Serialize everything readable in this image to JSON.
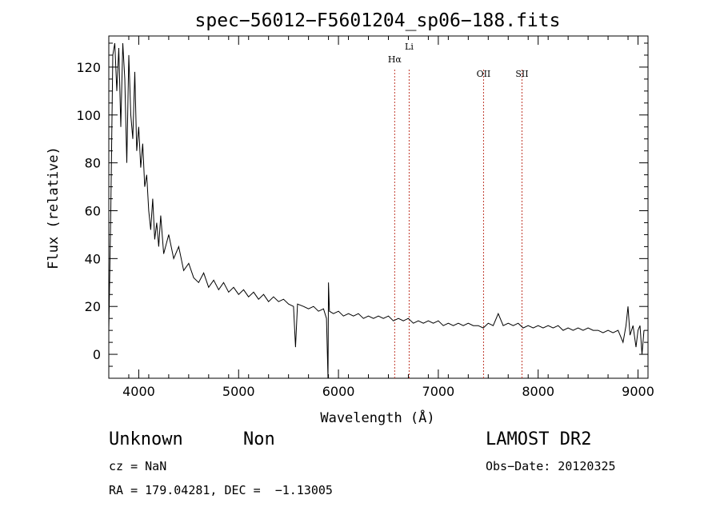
{
  "chart_data": {
    "type": "line",
    "title": "spec−56012−F5601204_sp06−188.fits",
    "xlabel": "Wavelength (Å)",
    "ylabel": "Flux (relative)",
    "xlim": [
      3700,
      9100
    ],
    "ylim": [
      -10,
      133
    ],
    "x_ticks": [
      4000,
      5000,
      6000,
      7000,
      8000,
      9000
    ],
    "y_ticks": [
      0,
      20,
      40,
      60,
      80,
      100,
      120
    ],
    "series": [
      {
        "color": "#000000",
        "points": [
          [
            3700,
            10
          ],
          [
            3720,
            60
          ],
          [
            3740,
            125
          ],
          [
            3760,
            130
          ],
          [
            3780,
            110
          ],
          [
            3800,
            128
          ],
          [
            3820,
            95
          ],
          [
            3840,
            130
          ],
          [
            3860,
            115
          ],
          [
            3880,
            80
          ],
          [
            3900,
            125
          ],
          [
            3920,
            100
          ],
          [
            3940,
            90
          ],
          [
            3960,
            118
          ],
          [
            3980,
            85
          ],
          [
            4000,
            95
          ],
          [
            4020,
            78
          ],
          [
            4040,
            88
          ],
          [
            4060,
            70
          ],
          [
            4080,
            75
          ],
          [
            4100,
            60
          ],
          [
            4120,
            52
          ],
          [
            4140,
            65
          ],
          [
            4160,
            48
          ],
          [
            4180,
            55
          ],
          [
            4200,
            45
          ],
          [
            4220,
            58
          ],
          [
            4250,
            42
          ],
          [
            4300,
            50
          ],
          [
            4350,
            40
          ],
          [
            4400,
            45
          ],
          [
            4450,
            35
          ],
          [
            4500,
            38
          ],
          [
            4550,
            32
          ],
          [
            4600,
            30
          ],
          [
            4650,
            34
          ],
          [
            4700,
            28
          ],
          [
            4750,
            31
          ],
          [
            4800,
            27
          ],
          [
            4850,
            30
          ],
          [
            4900,
            26
          ],
          [
            4950,
            28
          ],
          [
            5000,
            25
          ],
          [
            5050,
            27
          ],
          [
            5100,
            24
          ],
          [
            5150,
            26
          ],
          [
            5200,
            23
          ],
          [
            5250,
            25
          ],
          [
            5300,
            22
          ],
          [
            5350,
            24
          ],
          [
            5400,
            22
          ],
          [
            5450,
            23
          ],
          [
            5500,
            21
          ],
          [
            5550,
            20
          ],
          [
            5570,
            3
          ],
          [
            5590,
            21
          ],
          [
            5650,
            20
          ],
          [
            5700,
            19
          ],
          [
            5750,
            20
          ],
          [
            5800,
            18
          ],
          [
            5850,
            19
          ],
          [
            5880,
            15
          ],
          [
            5895,
            -10
          ],
          [
            5900,
            30
          ],
          [
            5910,
            18
          ],
          [
            5950,
            17
          ],
          [
            6000,
            18
          ],
          [
            6050,
            16
          ],
          [
            6100,
            17
          ],
          [
            6150,
            16
          ],
          [
            6200,
            17
          ],
          [
            6250,
            15
          ],
          [
            6300,
            16
          ],
          [
            6350,
            15
          ],
          [
            6400,
            16
          ],
          [
            6450,
            15
          ],
          [
            6500,
            16
          ],
          [
            6550,
            14
          ],
          [
            6600,
            15
          ],
          [
            6650,
            14
          ],
          [
            6700,
            15
          ],
          [
            6750,
            13
          ],
          [
            6800,
            14
          ],
          [
            6850,
            13
          ],
          [
            6900,
            14
          ],
          [
            6950,
            13
          ],
          [
            7000,
            14
          ],
          [
            7050,
            12
          ],
          [
            7100,
            13
          ],
          [
            7150,
            12
          ],
          [
            7200,
            13
          ],
          [
            7250,
            12
          ],
          [
            7300,
            13
          ],
          [
            7350,
            12
          ],
          [
            7400,
            12
          ],
          [
            7450,
            11
          ],
          [
            7500,
            13
          ],
          [
            7550,
            12
          ],
          [
            7600,
            17
          ],
          [
            7650,
            12
          ],
          [
            7700,
            13
          ],
          [
            7750,
            12
          ],
          [
            7800,
            13
          ],
          [
            7850,
            11
          ],
          [
            7900,
            12
          ],
          [
            7950,
            11
          ],
          [
            8000,
            12
          ],
          [
            8050,
            11
          ],
          [
            8100,
            12
          ],
          [
            8150,
            11
          ],
          [
            8200,
            12
          ],
          [
            8250,
            10
          ],
          [
            8300,
            11
          ],
          [
            8350,
            10
          ],
          [
            8400,
            11
          ],
          [
            8450,
            10
          ],
          [
            8500,
            11
          ],
          [
            8550,
            10
          ],
          [
            8600,
            10
          ],
          [
            8650,
            9
          ],
          [
            8700,
            10
          ],
          [
            8750,
            9
          ],
          [
            8800,
            10
          ],
          [
            8850,
            5
          ],
          [
            8880,
            12
          ],
          [
            8900,
            20
          ],
          [
            8920,
            8
          ],
          [
            8950,
            12
          ],
          [
            8980,
            3
          ],
          [
            9000,
            10
          ],
          [
            9020,
            12
          ],
          [
            9040,
            0
          ],
          [
            9060,
            10
          ]
        ]
      }
    ],
    "reference_lines": [
      {
        "label": "Hα",
        "x": 6563
      },
      {
        "label": "Li",
        "x": 6708
      },
      {
        "label": "OII",
        "x": 7453
      },
      {
        "label": "SII",
        "x": 7838
      }
    ],
    "grid": false,
    "reference_line_color": "#c0392b"
  },
  "info": {
    "class": "Unknown",
    "subclass": "Non",
    "survey": "LAMOST DR2",
    "cz": "cz = NaN",
    "obs_date": "Obs−Date: 20120325",
    "coords": "RA = 179.04281, DEC =  −1.13005"
  }
}
